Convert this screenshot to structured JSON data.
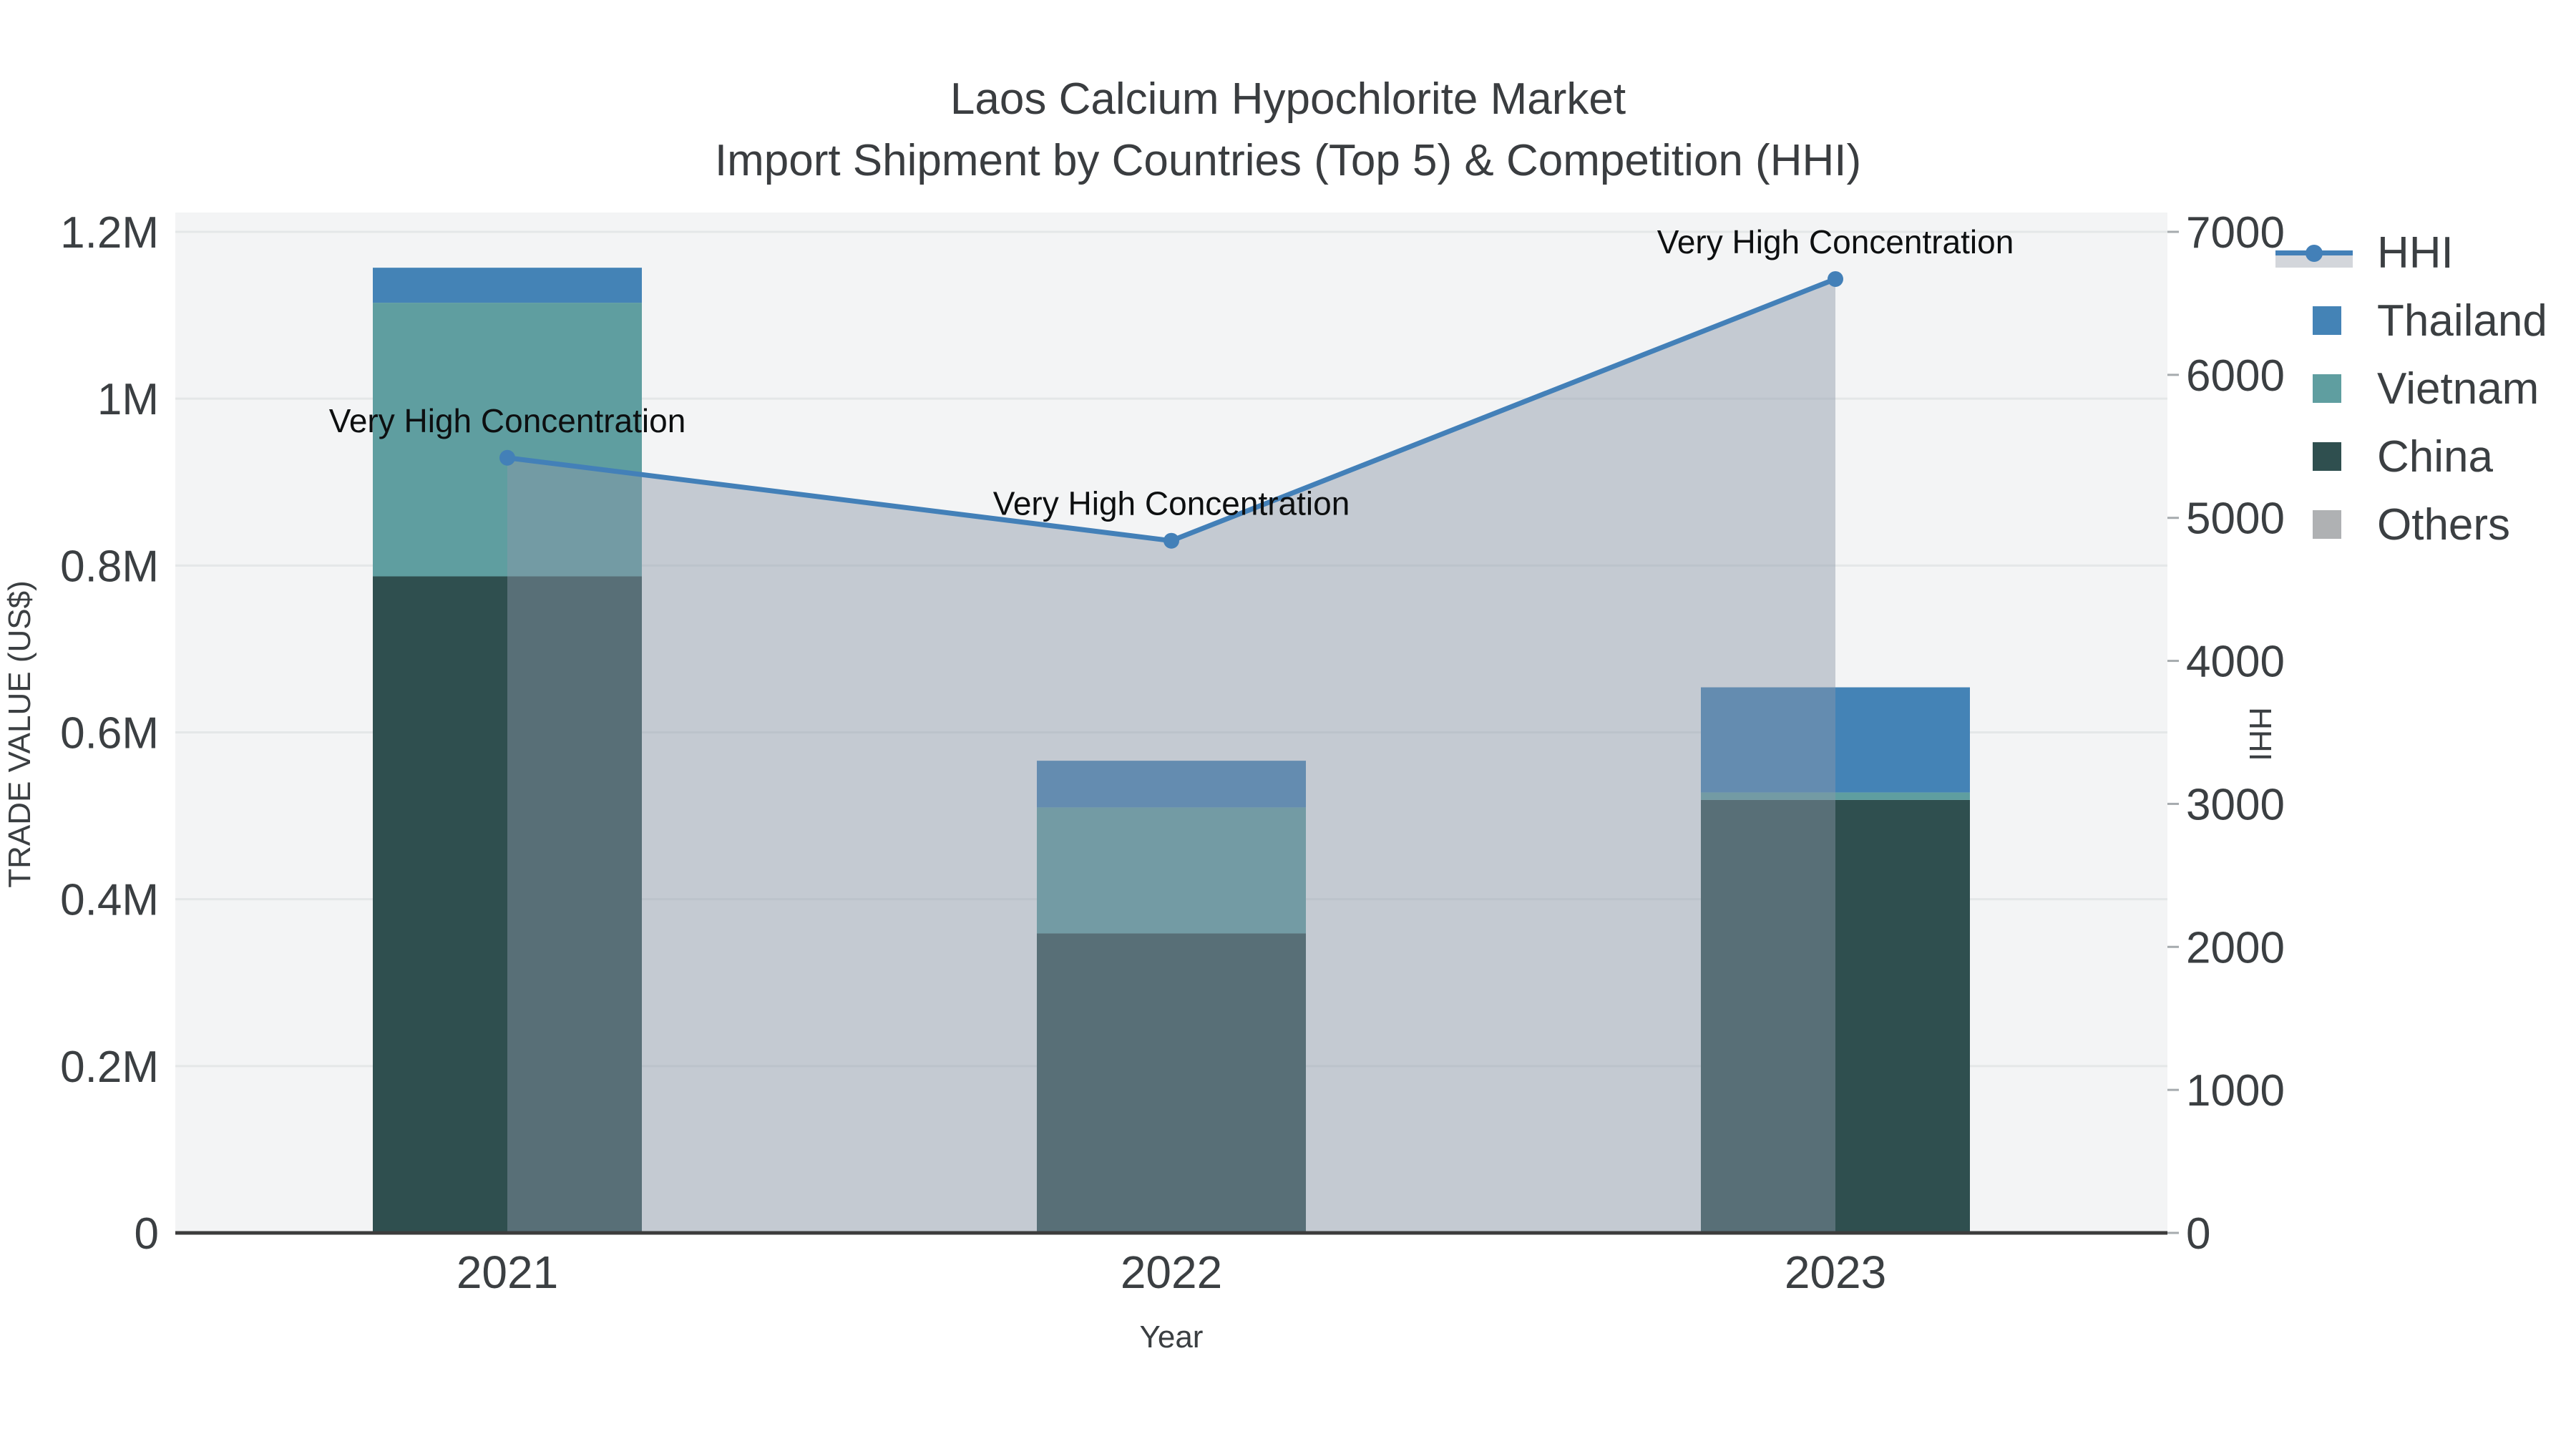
{
  "chart_data": {
    "type": "combo: stacked bar (trade value) + line with area fill (HHI)",
    "title": "Laos Calcium Hypochlorite Market",
    "subtitle": "Import Shipment by Countries (Top 5) & Competition (HHI)",
    "x": {
      "title": "Year",
      "categories": [
        "2021",
        "2022",
        "2023"
      ]
    },
    "y_left": {
      "title": "TRADE VALUE (US$)",
      "tick_labels": [
        "0",
        "0.2M",
        "0.4M",
        "0.6M",
        "0.8M",
        "1M",
        "1.2M"
      ],
      "tick_values": [
        0,
        200000,
        400000,
        600000,
        800000,
        1000000,
        1200000
      ],
      "range": [
        0,
        1200000
      ]
    },
    "y_right": {
      "title": "HHI",
      "tick_labels": [
        "0",
        "1000",
        "2000",
        "3000",
        "4000",
        "5000",
        "6000",
        "7000"
      ],
      "tick_values": [
        0,
        1000,
        2000,
        3000,
        4000,
        5000,
        6000,
        7000
      ],
      "range": [
        0,
        7000
      ]
    },
    "series": [
      {
        "name": "China",
        "type": "bar",
        "color": "#2F4F4F",
        "values": [
          787000,
          359000,
          519000
        ]
      },
      {
        "name": "Vietnam",
        "type": "bar",
        "color": "#5F9EA0",
        "values": [
          328000,
          151000,
          9000
        ]
      },
      {
        "name": "Thailand",
        "type": "bar",
        "color": "#4483B6",
        "values": [
          42000,
          56000,
          126000
        ]
      },
      {
        "name": "Others",
        "type": "bar",
        "color": "#AFB1B3",
        "values": [
          0,
          0,
          0
        ]
      }
    ],
    "line_series": {
      "name": "HHI",
      "color": "#4380B8",
      "area_color": "rgba(140,150,168,0.45)",
      "values": [
        5420,
        4840,
        6670
      ]
    },
    "annotations": [
      {
        "x": "2021",
        "text": "Very High Concentration"
      },
      {
        "x": "2022",
        "text": "Very High Concentration"
      },
      {
        "x": "2023",
        "text": "Very High Concentration"
      }
    ],
    "legend": [
      {
        "label": "HHI",
        "swatch": "line-marker-band"
      },
      {
        "label": "Thailand",
        "swatch": "square",
        "color": "#4483B6"
      },
      {
        "label": "Vietnam",
        "swatch": "square",
        "color": "#5F9EA0"
      },
      {
        "label": "China",
        "swatch": "square",
        "color": "#2F4F4F"
      },
      {
        "label": "Others",
        "swatch": "square",
        "color": "#AFB1B3"
      }
    ],
    "style": {
      "plot_background": "#F3F4F5",
      "gridline_color": "#E4E7E8",
      "axis_line_color": "#3C3C3C",
      "tick_label_color": "#3B3F42",
      "annotation_color": "#0D0F10",
      "legend_position": "top-right",
      "grid": "horizontal only"
    }
  }
}
